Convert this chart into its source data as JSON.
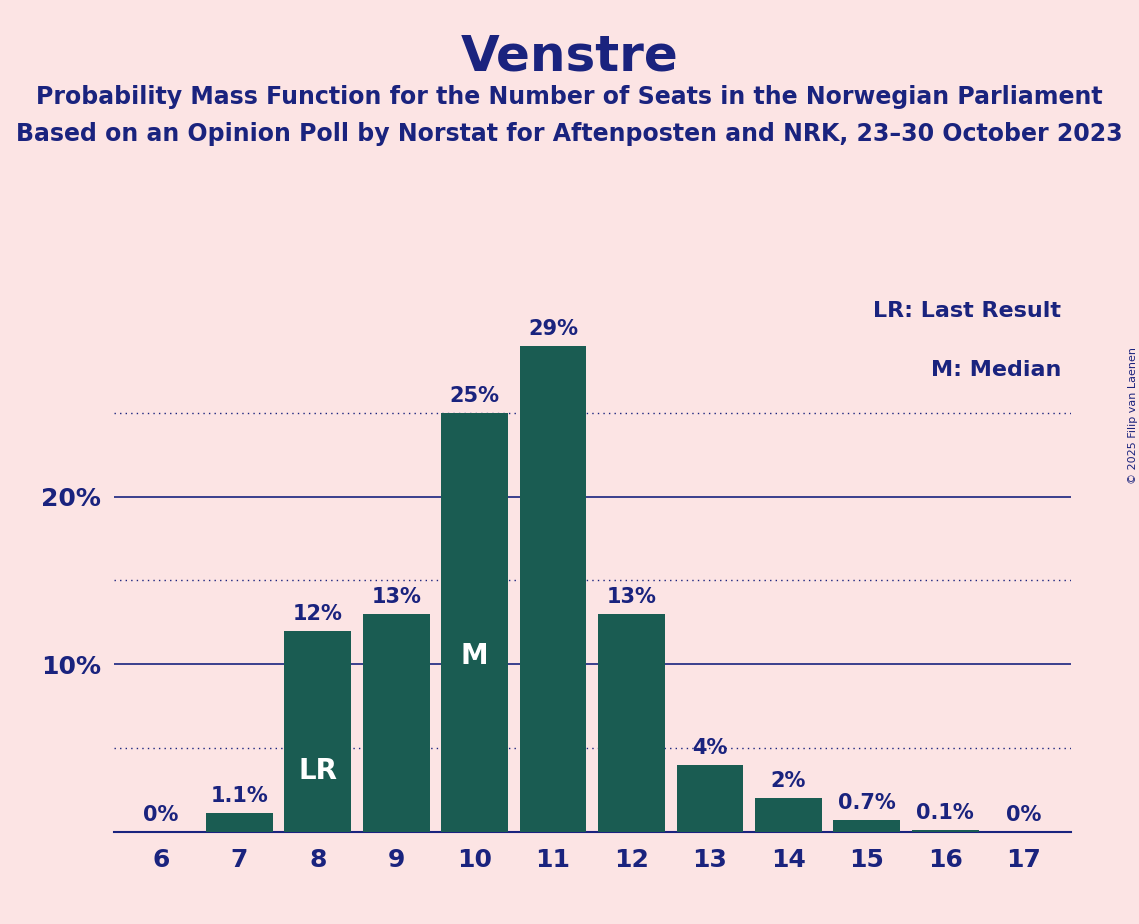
{
  "title": "Venstre",
  "subtitle1": "Probability Mass Function for the Number of Seats in the Norwegian Parliament",
  "subtitle2": "Based on an Opinion Poll by Norstat for Aftenposten and NRK, 23–30 October 2023",
  "copyright": "© 2025 Filip van Laenen",
  "seats": [
    6,
    7,
    8,
    9,
    10,
    11,
    12,
    13,
    14,
    15,
    16,
    17
  ],
  "probabilities": [
    0.0,
    1.1,
    12.0,
    13.0,
    25.0,
    29.0,
    13.0,
    4.0,
    2.0,
    0.7,
    0.1,
    0.0
  ],
  "bar_labels": [
    "0%",
    "1.1%",
    "12%",
    "13%",
    "25%",
    "29%",
    "13%",
    "4%",
    "2%",
    "0.7%",
    "0.1%",
    "0%"
  ],
  "bar_color": "#1a5c52",
  "background_color": "#fce4e4",
  "text_color": "#1a237e",
  "lr_seat": 8,
  "median_seat": 10,
  "lr_label": "LR",
  "median_label": "M",
  "legend_lr": "LR: Last Result",
  "legend_m": "M: Median",
  "ymax": 32,
  "solid_yticks": [
    10,
    20
  ],
  "dotted_yticks": [
    5,
    15,
    25
  ],
  "title_fontsize": 36,
  "subtitle_fontsize": 17,
  "axis_fontsize": 18,
  "bar_label_fontsize": 15,
  "legend_fontsize": 16,
  "inner_label_fontsize": 20,
  "copyright_fontsize": 8
}
